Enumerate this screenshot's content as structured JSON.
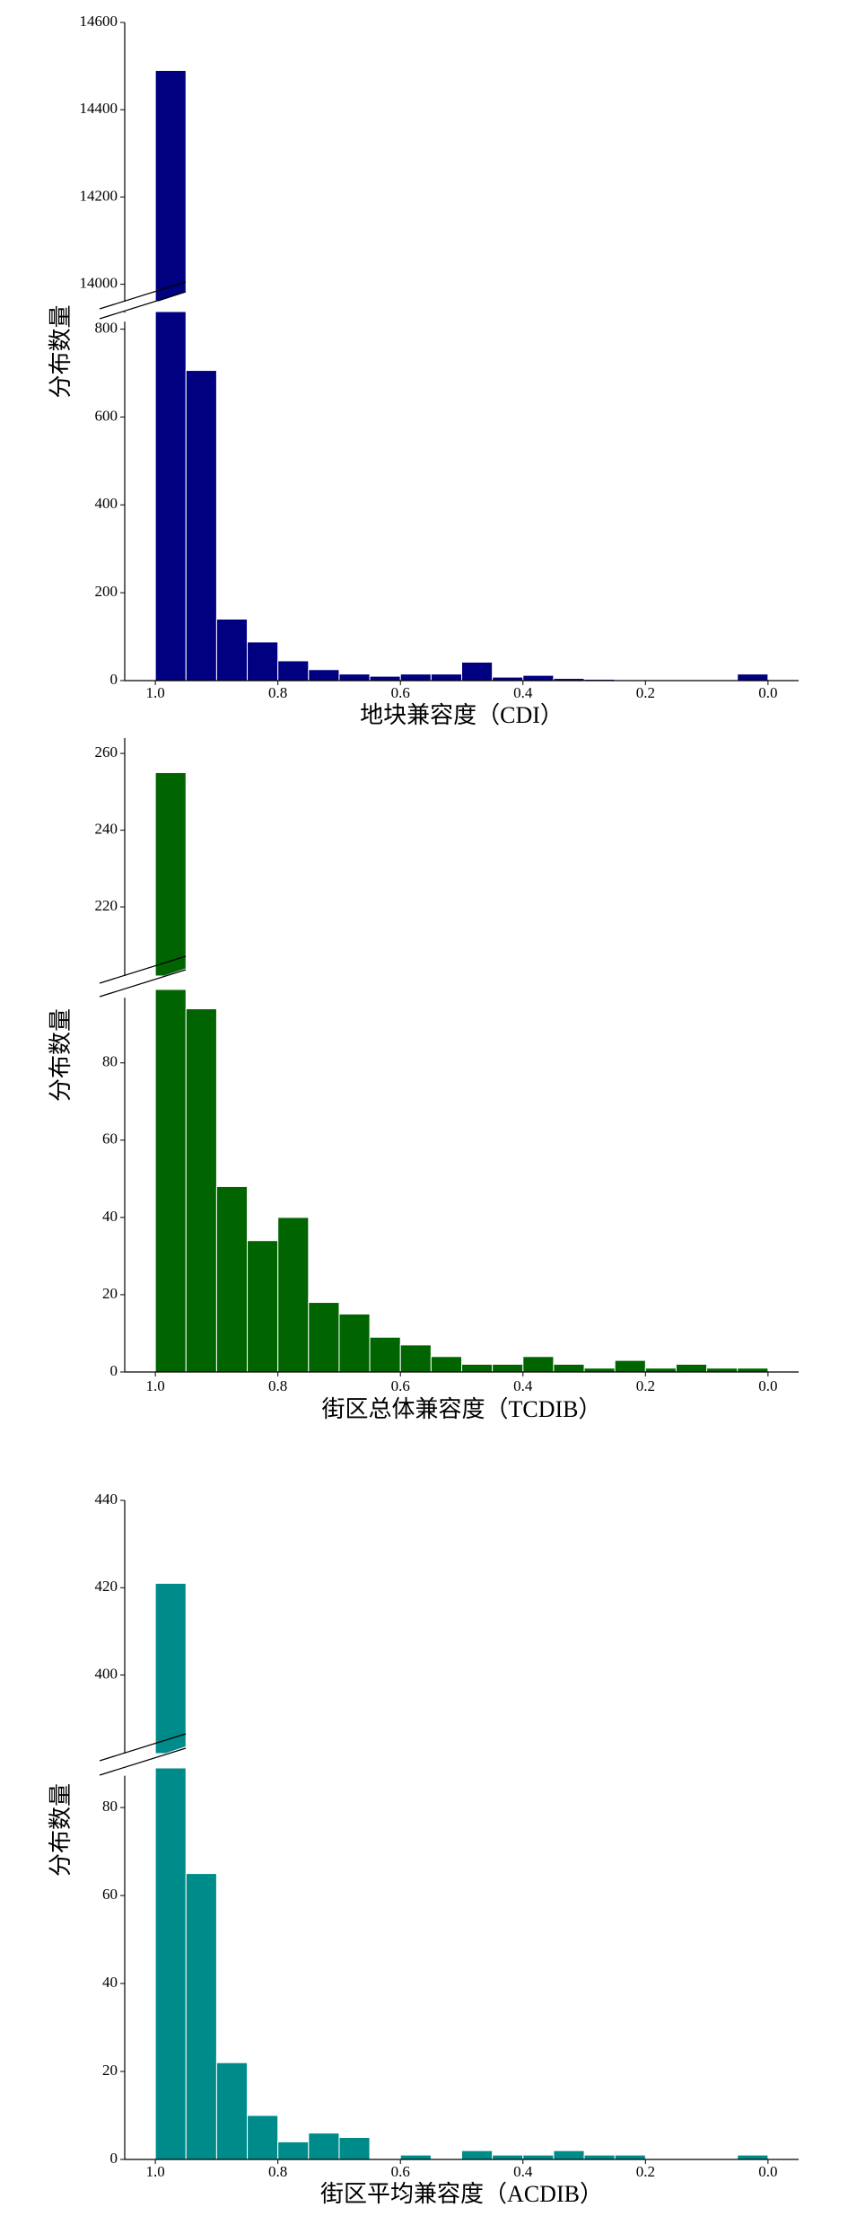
{
  "chart_data": [
    {
      "type": "histogram",
      "xlabel": "地块兼容度（CDI）",
      "ylabel": "分布数量",
      "color": "#000080",
      "bins": [
        1.0,
        0.95,
        0.9,
        0.85,
        0.8,
        0.75,
        0.7,
        0.65,
        0.6,
        0.55,
        0.5,
        0.45,
        0.4,
        0.35,
        0.3,
        0.25,
        0.2,
        0.15,
        0.1,
        0.05,
        0.0
      ],
      "counts": [
        14490,
        706,
        140,
        88,
        45,
        25,
        15,
        10,
        15,
        15,
        42,
        8,
        12,
        5,
        3,
        2,
        2,
        1,
        0,
        15
      ],
      "xlim": [
        1.05,
        -0.05
      ],
      "xticks": [
        {
          "value": 1.0,
          "label": "1.0"
        },
        0.8,
        0.6,
        0.4,
        0.2,
        {
          "value": 0.0,
          "label": "0.0"
        }
      ],
      "ylim_lower": [
        0,
        840
      ],
      "yticks_lower": [
        0,
        200,
        400,
        600,
        800
      ],
      "ylim_upper": [
        13960,
        14600
      ],
      "yticks_upper": [
        14000,
        14200,
        14400,
        14600
      ]
    },
    {
      "type": "histogram",
      "xlabel": "街区总体兼容度（TCDIB）",
      "ylabel": "分布数量",
      "color": "#006400",
      "bins": [
        1.0,
        0.95,
        0.9,
        0.85,
        0.8,
        0.75,
        0.7,
        0.65,
        0.6,
        0.55,
        0.5,
        0.45,
        0.4,
        0.35,
        0.3,
        0.25,
        0.2,
        0.15,
        0.1,
        0.05,
        0.0
      ],
      "counts": [
        255,
        94,
        48,
        34,
        40,
        18,
        15,
        9,
        7,
        4,
        2,
        2,
        4,
        2,
        1,
        3,
        1,
        2,
        1,
        1
      ],
      "xlim": [
        1.05,
        -0.05
      ],
      "xticks": [
        {
          "value": 1.0,
          "label": "1.0"
        },
        0.8,
        0.6,
        0.4,
        0.2,
        {
          "value": 0.0,
          "label": "0.0"
        }
      ],
      "ylim_lower": [
        0,
        99
      ],
      "yticks_lower": [
        0,
        20,
        40,
        60,
        80
      ],
      "ylim_upper": [
        202,
        264
      ],
      "yticks_upper": [
        220,
        240,
        260
      ]
    },
    {
      "type": "histogram",
      "xlabel": "街区平均兼容度（ACDIB）",
      "ylabel": "分布数量",
      "color": "#008B8B",
      "bins": [
        1.0,
        0.95,
        0.9,
        0.85,
        0.8,
        0.75,
        0.7,
        0.65,
        0.6,
        0.55,
        0.5,
        0.45,
        0.4,
        0.35,
        0.3,
        0.25,
        0.2,
        0.15,
        0.1,
        0.05,
        0.0
      ],
      "counts": [
        421,
        65,
        22,
        10,
        4,
        6,
        5,
        0,
        1,
        0,
        2,
        1,
        1,
        2,
        1,
        1,
        0,
        0,
        0,
        1
      ],
      "xlim": [
        1.05,
        -0.05
      ],
      "xticks": [
        {
          "value": 1.0,
          "label": "1.0"
        },
        0.8,
        0.6,
        0.4,
        0.2,
        {
          "value": 0.0,
          "label": "0.0"
        }
      ],
      "ylim_lower": [
        0,
        89
      ],
      "yticks_lower": [
        0,
        20,
        40,
        60,
        80
      ],
      "ylim_upper": [
        382,
        440
      ],
      "yticks_upper": [
        400,
        420,
        440
      ]
    }
  ]
}
